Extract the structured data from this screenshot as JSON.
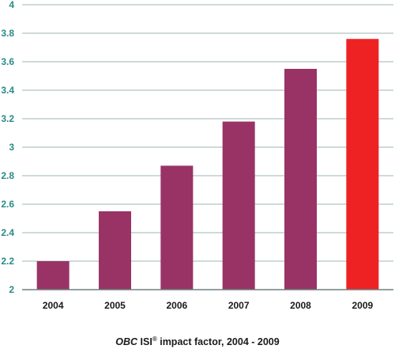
{
  "chart_data": {
    "type": "bar",
    "categories": [
      "2004",
      "2005",
      "2006",
      "2007",
      "2008",
      "2009"
    ],
    "values": [
      2.2,
      2.55,
      2.87,
      3.18,
      3.55,
      3.76
    ],
    "ylim": [
      2,
      4
    ],
    "yticks": [
      "2",
      "2.2",
      "2.4",
      "2.6",
      "2.8",
      "3",
      "3.2",
      "3.4",
      "3.6",
      "3.8",
      "4"
    ],
    "grid": true,
    "colors": {
      "bar": "#993366",
      "highlight_bar": "#ee2222",
      "grid": "#9fb5b5",
      "ytick_text": "#2a8a8a"
    },
    "highlight_index": 5,
    "caption": {
      "journal": "OBC",
      "isi": "ISI",
      "mark": "®",
      "rest": " impact factor, 2004 - 2009"
    }
  }
}
